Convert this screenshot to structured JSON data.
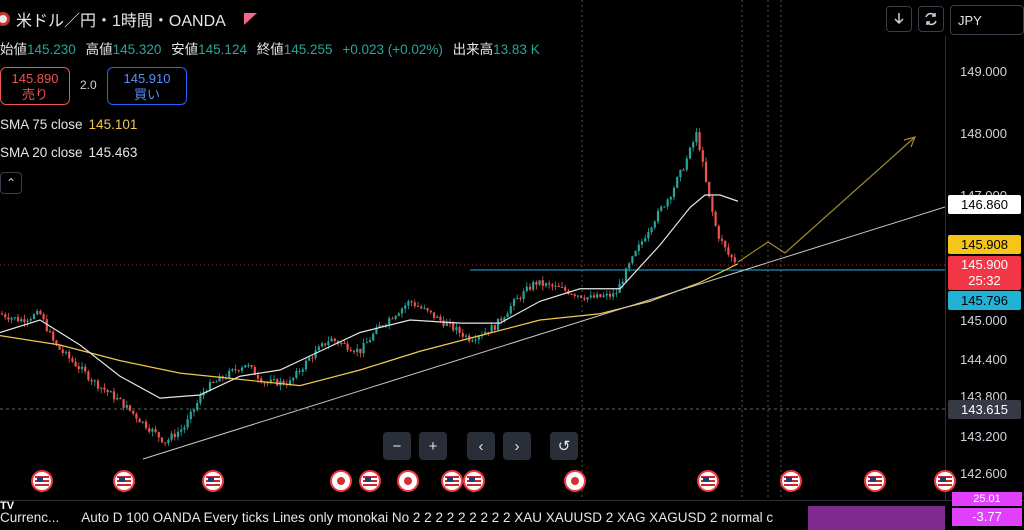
{
  "header": {
    "title": "米ドル／円・1時間・OANDA",
    "ohlc": [
      {
        "label": "始値",
        "value": "145.230"
      },
      {
        "label": "高値",
        "value": "145.320"
      },
      {
        "label": "安値",
        "value": "145.124"
      },
      {
        "label": "終値",
        "value": "145.255"
      }
    ],
    "change": "+0.023 (+0.02%)",
    "volume_label": "出来高",
    "volume_value": "13.83 K"
  },
  "trade": {
    "sell_price": "145.890",
    "sell_label": "売り",
    "spread": "2.0",
    "buy_price": "145.910",
    "buy_label": "買い"
  },
  "indicators": [
    {
      "label": "SMA 75 close",
      "value": "145.101",
      "color": "#f2c94c"
    },
    {
      "label": "SMA 20 close",
      "value": "145.463",
      "color": "#e6e6e6"
    }
  ],
  "toolbar": {
    "currency": "JPY",
    "download_icon": "download-icon",
    "replay_icon": "replay-icon"
  },
  "price_axis": {
    "ticks": [
      "149.000",
      "148.000",
      "147.000",
      "145.000",
      "144.400",
      "143.800",
      "143.200",
      "142.600"
    ],
    "labels": {
      "level_white": "146.860",
      "level_yellow": "145.908",
      "current_price": "145.900",
      "countdown": "25:32",
      "level_cyan": "145.796",
      "level_dark": "143.615"
    },
    "bottom_values": [
      "25.01",
      "-3.77"
    ]
  },
  "navigation": {
    "buttons": [
      "−",
      "+",
      "‹",
      "›",
      "↺"
    ]
  },
  "events": [
    "us",
    "us",
    "us",
    "jp",
    "us",
    "jp",
    "us",
    "us",
    "jp",
    "us",
    "us",
    "us",
    "us"
  ],
  "status_bar": {
    "logo": "TV",
    "title": "Currenc...",
    "text": "Auto D 100 OANDA Every ticks Lines only monokai No 2 2 2 2 2 2 2 2 2 XAU XAUUSD 2 XAG XAGUSD 2 normal c"
  },
  "colors": {
    "bull": "#26a69a",
    "bear": "#ef5350",
    "sma75": "#f2c94c",
    "sma20": "#e6e6e6",
    "trendline": "#c8c8c8",
    "arrow": "#a08a2a",
    "hline": "#22b2d6"
  }
}
